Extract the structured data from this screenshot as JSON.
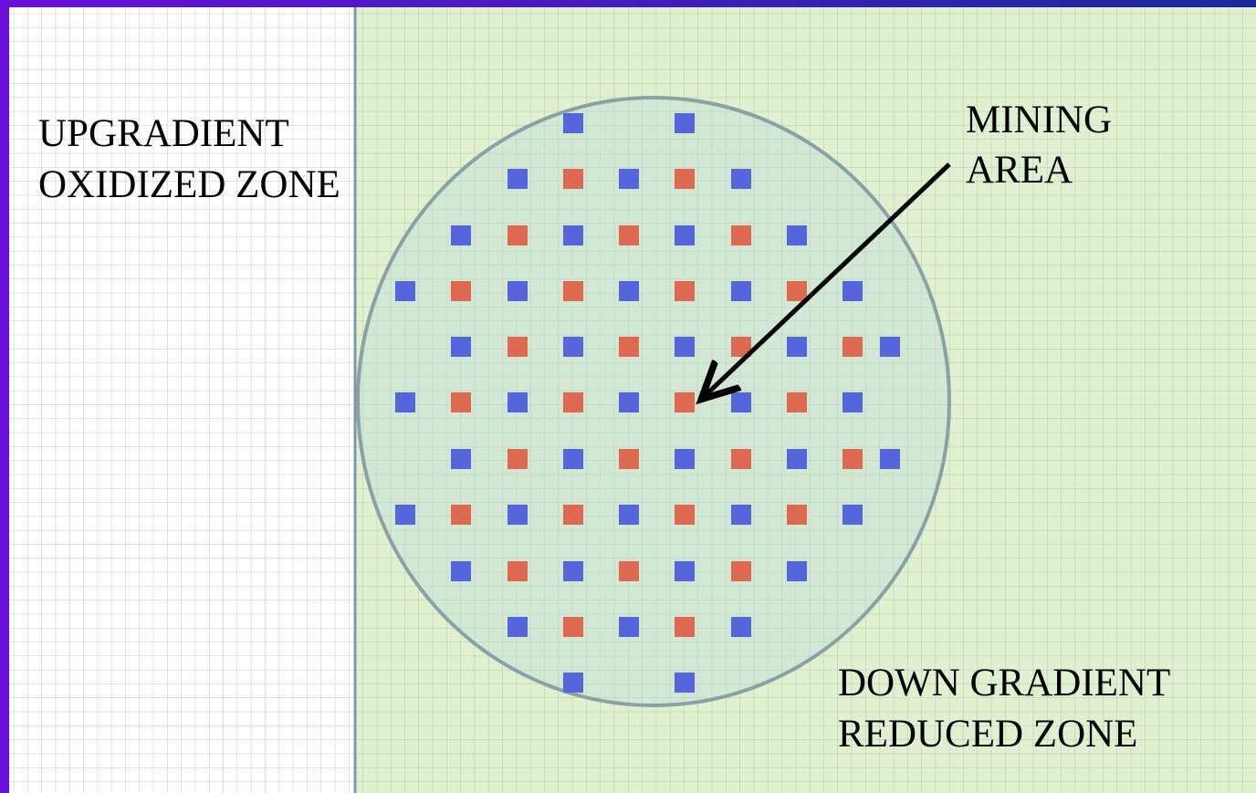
{
  "zones": {
    "upgradient": {
      "lines": [
        "UPGRADIENT",
        "OXIDIZED ZONE"
      ]
    },
    "mining": {
      "lines": [
        "MINING",
        "AREA"
      ]
    },
    "downgradient": {
      "lines": [
        "DOWN GRADIENT",
        "REDUCED ZONE"
      ]
    }
  }
}
